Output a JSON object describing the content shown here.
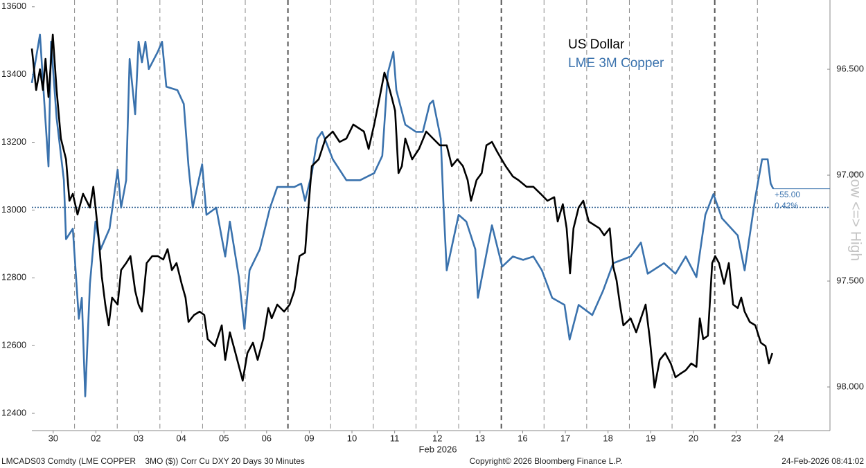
{
  "chart_data": {
    "type": "line",
    "legend": [
      "US Dollar",
      "LME 3M Copper"
    ],
    "xlabel": "Feb 2026",
    "xlim": [
      0,
      18.7
    ],
    "xticks": [
      {
        "value": 0.5,
        "label": "30"
      },
      {
        "value": 1.5,
        "label": "02"
      },
      {
        "value": 2.5,
        "label": "03"
      },
      {
        "value": 3.5,
        "label": "04"
      },
      {
        "value": 4.5,
        "label": "05"
      },
      {
        "value": 5.5,
        "label": "06"
      },
      {
        "value": 6.5,
        "label": "09"
      },
      {
        "value": 7.5,
        "label": "10"
      },
      {
        "value": 8.5,
        "label": "11"
      },
      {
        "value": 9.5,
        "label": "12"
      },
      {
        "value": 10.5,
        "label": "13"
      },
      {
        "value": 11.5,
        "label": "16"
      },
      {
        "value": 12.5,
        "label": "17"
      },
      {
        "value": 13.5,
        "label": "18"
      },
      {
        "value": 14.5,
        "label": "19"
      },
      {
        "value": 15.5,
        "label": "20"
      },
      {
        "value": 16.5,
        "label": "23"
      },
      {
        "value": 17.5,
        "label": "24"
      }
    ],
    "xminorticks": [
      1,
      2,
      3,
      4,
      5,
      7,
      8,
      9,
      10,
      12,
      13,
      14,
      15,
      17
    ],
    "xmajorticks": [
      6,
      11,
      16
    ],
    "ylim": [
      12349,
      13620
    ],
    "yticks": [
      12400,
      12600,
      12800,
      13000,
      13200,
      13400,
      13600
    ],
    "y2lim": [
      96.173,
      98.206
    ],
    "y2_inverted": true,
    "y2label": "Low <=> High",
    "y2ticks": [
      {
        "value": 96.5,
        "label": "96.500"
      },
      {
        "value": 97,
        "label": "97.000"
      },
      {
        "value": 97.5,
        "label": "97.500"
      },
      {
        "value": 98,
        "label": "98.000"
      }
    ],
    "reference_value": 13008,
    "change_label": "+55.00",
    "pct_label": "0.42%",
    "series": [
      {
        "name": "US Dollar",
        "color": "#000000",
        "axis": "y2",
        "x": [
          0.0,
          0.1,
          0.19,
          0.26,
          0.32,
          0.39,
          0.49,
          0.58,
          0.68,
          0.8,
          0.88,
          0.96,
          1.07,
          1.2,
          1.36,
          1.44,
          1.56,
          1.64,
          1.72,
          1.8,
          1.88,
          2.01,
          2.09,
          2.21,
          2.31,
          2.42,
          2.5,
          2.58,
          2.69,
          2.82,
          2.95,
          3.08,
          3.18,
          3.28,
          3.39,
          3.51,
          3.6,
          3.67,
          3.8,
          3.93,
          4.04,
          4.12,
          4.29,
          4.45,
          4.53,
          4.64,
          4.77,
          4.94,
          5.05,
          5.18,
          5.29,
          5.42,
          5.54,
          5.62,
          5.75,
          5.91,
          6.04,
          6.15,
          6.27,
          6.4,
          6.48,
          6.56,
          6.72,
          6.88,
          7.05,
          7.21,
          7.37,
          7.53,
          7.66,
          7.78,
          7.89,
          8.02,
          8.15,
          8.26,
          8.34,
          8.43,
          8.51,
          8.59,
          8.67,
          8.75,
          8.91,
          9.07,
          9.24,
          9.4,
          9.56,
          9.72,
          9.84,
          9.97,
          10.1,
          10.21,
          10.29,
          10.42,
          10.54,
          10.65,
          10.78,
          10.91,
          11.1,
          11.27,
          11.4,
          11.59,
          11.75,
          11.92,
          12.08,
          12.24,
          12.32,
          12.44,
          12.53,
          12.61,
          12.69,
          12.81,
          12.92,
          13.05,
          13.3,
          13.41,
          13.54,
          13.62,
          13.7,
          13.78,
          13.86,
          14.03,
          14.16,
          14.27,
          14.38,
          14.48,
          14.59,
          14.71,
          14.84,
          14.97,
          15.08,
          15.19,
          15.32,
          15.45,
          15.57,
          15.65,
          15.73,
          15.84,
          15.94,
          16.01,
          16.1,
          16.22,
          16.33,
          16.43,
          16.54,
          16.62,
          16.7,
          16.82,
          16.95,
          17.08,
          17.19,
          17.27,
          17.35
        ],
        "values": [
          96.402,
          96.598,
          96.5,
          96.598,
          96.451,
          96.631,
          96.336,
          96.598,
          96.827,
          96.925,
          97.121,
          97.088,
          97.186,
          97.088,
          97.153,
          97.055,
          97.284,
          97.48,
          97.611,
          97.709,
          97.578,
          97.611,
          97.448,
          97.415,
          97.382,
          97.546,
          97.611,
          97.644,
          97.415,
          97.382,
          97.382,
          97.398,
          97.349,
          97.448,
          97.415,
          97.513,
          97.578,
          97.693,
          97.66,
          97.644,
          97.66,
          97.774,
          97.807,
          97.709,
          97.872,
          97.742,
          97.84,
          97.97,
          97.84,
          97.791,
          97.872,
          97.774,
          97.627,
          97.676,
          97.611,
          97.644,
          97.611,
          97.546,
          97.382,
          97.366,
          97.153,
          96.957,
          96.925,
          96.827,
          96.794,
          96.843,
          96.827,
          96.761,
          96.778,
          96.794,
          96.876,
          96.761,
          96.631,
          96.516,
          96.565,
          96.631,
          96.696,
          96.99,
          96.957,
          96.827,
          96.925,
          96.876,
          96.794,
          96.827,
          96.859,
          96.859,
          96.957,
          96.925,
          96.957,
          97.023,
          97.121,
          97.023,
          96.99,
          96.859,
          96.843,
          96.892,
          96.957,
          97.006,
          97.023,
          97.055,
          97.055,
          97.088,
          97.121,
          97.104,
          97.219,
          97.137,
          97.251,
          97.464,
          97.251,
          97.153,
          97.121,
          97.219,
          97.251,
          97.284,
          97.251,
          97.431,
          97.497,
          97.611,
          97.709,
          97.676,
          97.742,
          97.676,
          97.611,
          97.774,
          98.003,
          97.872,
          97.84,
          97.889,
          97.954,
          97.938,
          97.921,
          97.889,
          97.905,
          97.676,
          97.774,
          97.758,
          97.415,
          97.382,
          97.415,
          97.513,
          97.415,
          97.611,
          97.627,
          97.578,
          97.644,
          97.693,
          97.709,
          97.791,
          97.807,
          97.889,
          97.84
        ]
      },
      {
        "name": "LME 3M Copper",
        "color": "#3a72ad",
        "x": [
          0.0,
          0.19,
          0.32,
          0.39,
          0.45,
          0.58,
          0.75,
          0.8,
          0.96,
          1.1,
          1.17,
          1.25,
          1.36,
          1.49,
          1.61,
          1.82,
          2.01,
          2.09,
          2.21,
          2.29,
          2.42,
          2.5,
          2.58,
          2.66,
          2.74,
          2.95,
          3.05,
          3.15,
          3.41,
          3.56,
          3.67,
          3.77,
          3.99,
          4.09,
          4.32,
          4.53,
          4.64,
          4.85,
          4.98,
          5.1,
          5.34,
          5.58,
          5.75,
          6.15,
          6.31,
          6.4,
          6.56,
          6.69,
          6.8,
          7.05,
          7.37,
          7.69,
          8.02,
          8.21,
          8.34,
          8.47,
          8.54,
          8.75,
          9.0,
          9.16,
          9.32,
          9.4,
          9.58,
          9.64,
          9.72,
          10.0,
          10.18,
          10.39,
          10.45,
          10.78,
          11.02,
          11.27,
          11.51,
          11.75,
          11.95,
          12.19,
          12.48,
          12.6,
          12.81,
          13.13,
          13.38,
          13.62,
          14.03,
          14.27,
          14.43,
          14.81,
          15.08,
          15.32,
          15.57,
          15.78,
          15.97,
          16.17,
          16.54,
          16.7,
          16.95,
          17.11,
          17.24,
          17.31,
          17.37
        ],
        "values": [
          13375,
          13518,
          13262,
          13129,
          13497,
          13272,
          13088,
          12914,
          12945,
          12679,
          12741,
          12450,
          12782,
          12966,
          12884,
          12945,
          13119,
          13007,
          13088,
          13446,
          13283,
          13497,
          13436,
          13497,
          13416,
          13467,
          13497,
          13364,
          13354,
          13313,
          13129,
          13007,
          13135,
          12986,
          13007,
          12863,
          12966,
          12802,
          12649,
          12822,
          12884,
          13007,
          13068,
          13068,
          13078,
          13027,
          13109,
          13211,
          13231,
          13150,
          13088,
          13088,
          13109,
          13160,
          13405,
          13467,
          13354,
          13252,
          13231,
          13231,
          13313,
          13323,
          13211,
          13027,
          12822,
          12986,
          12966,
          12884,
          12741,
          12955,
          12833,
          12863,
          12853,
          12863,
          12822,
          12741,
          12720,
          12618,
          12720,
          12690,
          12761,
          12843,
          12863,
          12904,
          12812,
          12843,
          12812,
          12863,
          12802,
          12986,
          13047,
          12976,
          12925,
          12822,
          13037,
          13150,
          13150,
          13078,
          13063
        ]
      }
    ]
  },
  "footer": {
    "left": "LMCADS03 Comdty (LME COPPER    3MO ($)) Corr Cu DXY 20 Days 30 Minutes",
    "center": "Copyright© 2026 Bloomberg Finance L.P.",
    "right": "24-Feb-2026 08:41:02"
  }
}
